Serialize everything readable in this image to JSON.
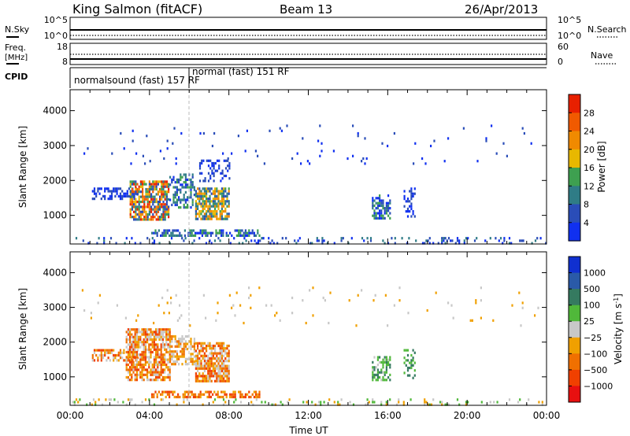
{
  "header": {
    "station": "King Salmon (fitACF)",
    "beam": "Beam 13",
    "date": "26/Apr/2013"
  },
  "colors": {
    "frame": "#000000",
    "marker_line": "#bbbbbb"
  },
  "chart_data": [
    {
      "type": "line",
      "panel": "noise",
      "left_label": "N.Sky",
      "right_label": "N.Search",
      "left_ticks": [
        "10^5",
        "10^0"
      ],
      "right_ticks": [
        "10^5",
        "10^0"
      ],
      "series": [
        {
          "name": "N.Sky",
          "style": "solid"
        },
        {
          "name": "N.Search",
          "style": "dotted"
        }
      ]
    },
    {
      "type": "line",
      "panel": "frequency",
      "left_label": "Freq.",
      "left_unit": "[MHz]",
      "right_label": "Nave",
      "left_ticks": [
        "18",
        "8"
      ],
      "right_ticks": [
        "60",
        "0"
      ],
      "series": [
        {
          "name": "Freq.",
          "style": "solid"
        },
        {
          "name": "Nave",
          "style": "dotted"
        }
      ]
    },
    {
      "type": "table",
      "panel": "cpid",
      "label": "CPID",
      "segments": [
        {
          "name": "normalsound (fast) 157 RF",
          "start_hour": 0,
          "end_hour": 6
        },
        {
          "name": "normal (fast) 151 RF",
          "start_hour": 6,
          "end_hour": 24
        }
      ]
    },
    {
      "type": "heatmap",
      "panel": "power",
      "ylabel": "Slant Range [km]",
      "yticks": [
        1000,
        2000,
        3000,
        4000
      ],
      "ylim": [
        180,
        4600
      ],
      "xlim": [
        0,
        24
      ],
      "colorbar": {
        "label": "Power [dB]",
        "ticks": [
          "4",
          "8",
          "12",
          "16",
          "20",
          "24",
          "28"
        ],
        "colors": [
          "#1030f0",
          "#2a4db8",
          "#2f7c86",
          "#3ea050",
          "#e8b800",
          "#f08a00",
          "#f05a00",
          "#e82000"
        ]
      },
      "regions": [
        {
          "x": [
            0.1,
            24
          ],
          "y": [
            190,
            380
          ],
          "density": 0.18,
          "levels": [
            0,
            1,
            2
          ]
        },
        {
          "x": [
            1.1,
            3.4
          ],
          "y": [
            1500,
            1800
          ],
          "density": 0.55,
          "levels": [
            0,
            1
          ]
        },
        {
          "x": [
            3.0,
            5.0
          ],
          "y": [
            900,
            2000
          ],
          "density": 0.75,
          "levels": [
            1,
            2,
            3,
            4,
            5,
            6,
            7
          ]
        },
        {
          "x": [
            5.0,
            6.3
          ],
          "y": [
            1200,
            2200
          ],
          "density": 0.45,
          "levels": [
            0,
            1,
            2,
            3
          ]
        },
        {
          "x": [
            6.3,
            8.0
          ],
          "y": [
            900,
            1800
          ],
          "density": 0.8,
          "levels": [
            1,
            2,
            3,
            4,
            5
          ]
        },
        {
          "x": [
            6.5,
            8.0
          ],
          "y": [
            2000,
            2600
          ],
          "density": 0.35,
          "levels": [
            0,
            1
          ]
        },
        {
          "x": [
            4.0,
            9.5
          ],
          "y": [
            400,
            600
          ],
          "density": 0.55,
          "levels": [
            0,
            1,
            2,
            3
          ]
        },
        {
          "x": [
            15.2,
            16.1
          ],
          "y": [
            900,
            1600
          ],
          "density": 0.6,
          "levels": [
            0,
            1,
            2,
            3
          ]
        },
        {
          "x": [
            16.8,
            17.4
          ],
          "y": [
            1000,
            1800
          ],
          "density": 0.35,
          "levels": [
            0,
            1
          ]
        },
        {
          "x": [
            0.5,
            24
          ],
          "y": [
            2500,
            3600
          ],
          "density": 0.02,
          "levels": [
            0,
            1
          ]
        }
      ]
    },
    {
      "type": "heatmap",
      "panel": "velocity",
      "ylabel": "Slant Range [km]",
      "yticks": [
        1000,
        2000,
        3000,
        4000
      ],
      "ylim": [
        180,
        4600
      ],
      "xlim": [
        0,
        24
      ],
      "xlabel": "Time UT",
      "xticks": [
        "00:00",
        "04:00",
        "08:00",
        "12:00",
        "16:00",
        "20:00",
        "00:00"
      ],
      "colorbar": {
        "label": "Velocity [m s",
        "label_sup": "-1",
        "label_end": "]",
        "ticks": [
          "1000",
          "500",
          "100",
          "25",
          "−25",
          "−100",
          "−500",
          "−1000"
        ],
        "colors": [
          "#1030d0",
          "#2a5aa8",
          "#357a60",
          "#50b83a",
          "#c8c8c8",
          "#f0a000",
          "#f07000",
          "#f04000",
          "#e81010"
        ]
      },
      "regions": [
        {
          "x": [
            0.1,
            24
          ],
          "y": [
            190,
            380
          ],
          "density": 0.14,
          "levels": [
            3,
            4,
            5
          ]
        },
        {
          "x": [
            1.1,
            3.4
          ],
          "y": [
            1500,
            1800
          ],
          "density": 0.55,
          "levels": [
            4,
            5,
            6,
            7
          ]
        },
        {
          "x": [
            2.8,
            5.0
          ],
          "y": [
            900,
            2400
          ],
          "density": 0.75,
          "levels": [
            4,
            5,
            6,
            7
          ]
        },
        {
          "x": [
            5.0,
            6.3
          ],
          "y": [
            1400,
            2200
          ],
          "density": 0.5,
          "levels": [
            4,
            5,
            6
          ]
        },
        {
          "x": [
            6.3,
            8.0
          ],
          "y": [
            900,
            2000
          ],
          "density": 0.8,
          "levels": [
            4,
            5,
            6,
            7
          ]
        },
        {
          "x": [
            4.0,
            9.5
          ],
          "y": [
            400,
            600
          ],
          "density": 0.55,
          "levels": [
            5,
            6,
            7
          ]
        },
        {
          "x": [
            15.2,
            16.1
          ],
          "y": [
            900,
            1600
          ],
          "density": 0.6,
          "levels": [
            2,
            3,
            4
          ]
        },
        {
          "x": [
            16.8,
            17.4
          ],
          "y": [
            1000,
            1800
          ],
          "density": 0.35,
          "levels": [
            2,
            3
          ]
        },
        {
          "x": [
            0.5,
            24
          ],
          "y": [
            2500,
            3600
          ],
          "density": 0.02,
          "levels": [
            4,
            5
          ]
        }
      ]
    }
  ]
}
